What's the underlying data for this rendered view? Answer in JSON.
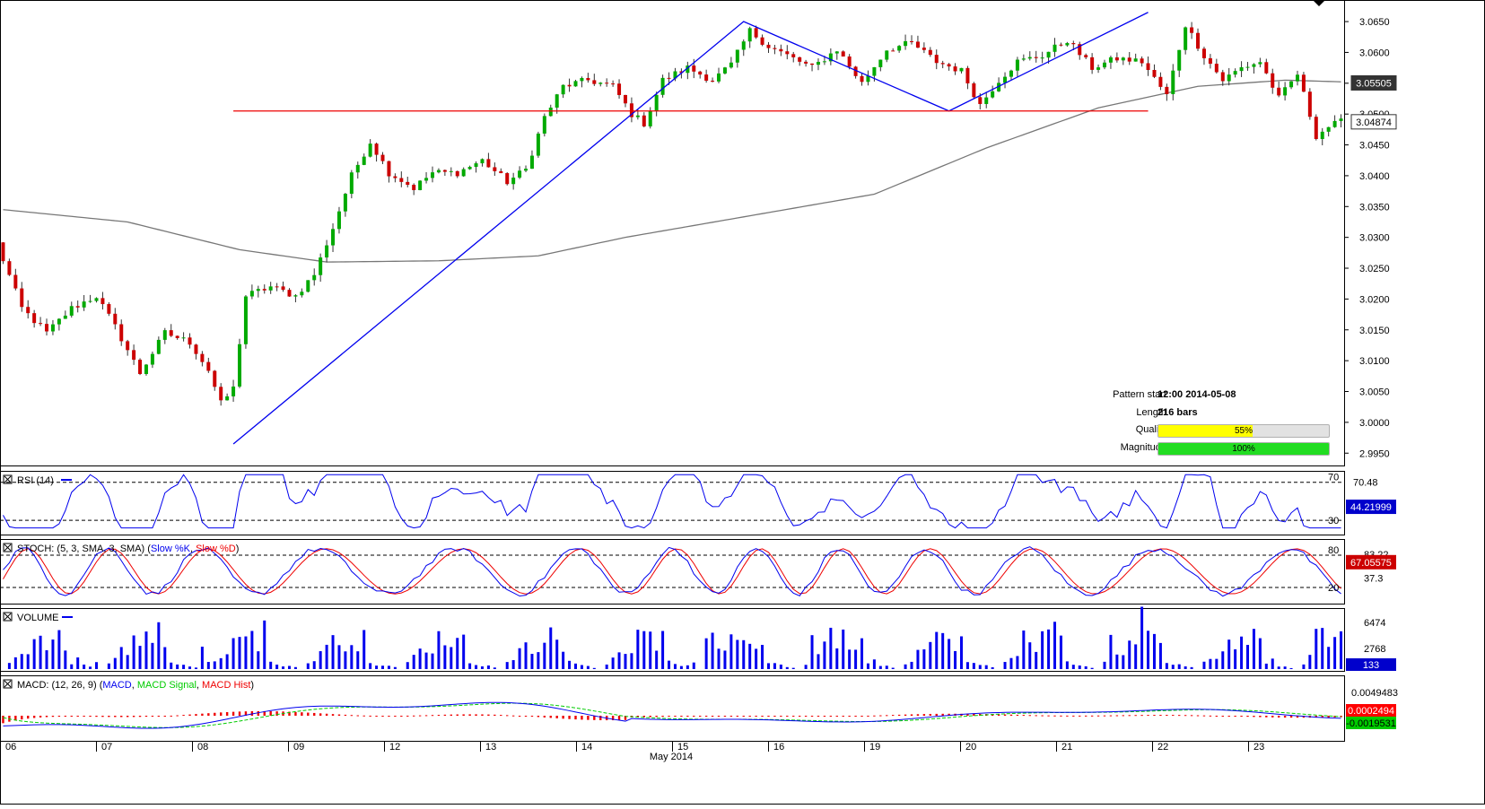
{
  "chart_data": {
    "type": "candlestick",
    "instrument_note": "",
    "x_axis": {
      "day_labels": [
        "06",
        "07",
        "08",
        "09",
        "12",
        "13",
        "14",
        "15",
        "16",
        "19",
        "20",
        "21",
        "22",
        "23"
      ],
      "month_label": "May 2014"
    },
    "price_panel": {
      "ylim": [
        2.993,
        3.0685
      ],
      "y_ticks": [
        "3.0650",
        "3.0600",
        "3.0550",
        "3.0500",
        "3.0450",
        "3.0400",
        "3.0350",
        "3.0300",
        "3.0250",
        "3.0200",
        "3.0150",
        "3.0100",
        "3.0050",
        "3.0000",
        "2.9950"
      ],
      "badges": [
        {
          "label": "3.05505",
          "value": 3.05505,
          "bg": "#333333",
          "fg": "#ffffff"
        },
        {
          "label": "3.04874",
          "value": 3.04874,
          "bg": "#ffffff",
          "fg": "#000000"
        }
      ],
      "candles_approx_count": 216,
      "anchor_path": [
        {
          "bar": 0,
          "price": 3.029
        },
        {
          "bar": 4,
          "price": 3.0185
        },
        {
          "bar": 8,
          "price": 3.0145
        },
        {
          "bar": 12,
          "price": 3.0185
        },
        {
          "bar": 16,
          "price": 3.0205
        },
        {
          "bar": 19,
          "price": 3.0155
        },
        {
          "bar": 23,
          "price": 3.008
        },
        {
          "bar": 27,
          "price": 3.0145
        },
        {
          "bar": 31,
          "price": 3.013
        },
        {
          "bar": 34,
          "price": 3.0085
        },
        {
          "bar": 36,
          "price": 3.003
        },
        {
          "bar": 38,
          "price": 3.0055
        },
        {
          "bar": 40,
          "price": 3.0205
        },
        {
          "bar": 44,
          "price": 3.022
        },
        {
          "bar": 48,
          "price": 3.0205
        },
        {
          "bar": 51,
          "price": 3.024
        },
        {
          "bar": 54,
          "price": 3.0315
        },
        {
          "bar": 57,
          "price": 3.04
        },
        {
          "bar": 60,
          "price": 3.0455
        },
        {
          "bar": 63,
          "price": 3.0405
        },
        {
          "bar": 67,
          "price": 3.038
        },
        {
          "bar": 70,
          "price": 3.0405
        },
        {
          "bar": 74,
          "price": 3.0405
        },
        {
          "bar": 78,
          "price": 3.0425
        },
        {
          "bar": 82,
          "price": 3.039
        },
        {
          "bar": 85,
          "price": 3.041
        },
        {
          "bar": 88,
          "price": 3.0495
        },
        {
          "bar": 91,
          "price": 3.0545
        },
        {
          "bar": 95,
          "price": 3.0555
        },
        {
          "bar": 99,
          "price": 3.0545
        },
        {
          "bar": 102,
          "price": 3.05
        },
        {
          "bar": 104,
          "price": 3.0485
        },
        {
          "bar": 107,
          "price": 3.0555
        },
        {
          "bar": 111,
          "price": 3.0575
        },
        {
          "bar": 115,
          "price": 3.0555
        },
        {
          "bar": 118,
          "price": 3.058
        },
        {
          "bar": 121,
          "price": 3.0635
        },
        {
          "bar": 124,
          "price": 3.061
        },
        {
          "bar": 127,
          "price": 3.0595
        },
        {
          "bar": 131,
          "price": 3.0575
        },
        {
          "bar": 135,
          "price": 3.0605
        },
        {
          "bar": 139,
          "price": 3.055
        },
        {
          "bar": 143,
          "price": 3.0605
        },
        {
          "bar": 147,
          "price": 3.0615
        },
        {
          "bar": 151,
          "price": 3.0585
        },
        {
          "bar": 155,
          "price": 3.057
        },
        {
          "bar": 158,
          "price": 3.0515
        },
        {
          "bar": 161,
          "price": 3.0555
        },
        {
          "bar": 164,
          "price": 3.0585
        },
        {
          "bar": 168,
          "price": 3.0595
        },
        {
          "bar": 172,
          "price": 3.062
        },
        {
          "bar": 176,
          "price": 3.0575
        },
        {
          "bar": 180,
          "price": 3.059
        },
        {
          "bar": 184,
          "price": 3.0585
        },
        {
          "bar": 188,
          "price": 3.053
        },
        {
          "bar": 191,
          "price": 3.0645
        },
        {
          "bar": 194,
          "price": 3.0595
        },
        {
          "bar": 197,
          "price": 3.0555
        },
        {
          "bar": 200,
          "price": 3.0575
        },
        {
          "bar": 203,
          "price": 3.0585
        },
        {
          "bar": 206,
          "price": 3.0525
        },
        {
          "bar": 209,
          "price": 3.0565
        },
        {
          "bar": 212,
          "price": 3.0465
        },
        {
          "bar": 214,
          "price": 3.048
        },
        {
          "bar": 216,
          "price": 3.0487
        }
      ],
      "moving_average": [
        {
          "bar": 0,
          "price": 3.0345
        },
        {
          "bar": 20,
          "price": 3.0325
        },
        {
          "bar": 38,
          "price": 3.028
        },
        {
          "bar": 52,
          "price": 3.026
        },
        {
          "bar": 70,
          "price": 3.0262
        },
        {
          "bar": 86,
          "price": 3.027
        },
        {
          "bar": 100,
          "price": 3.03
        },
        {
          "bar": 120,
          "price": 3.0335
        },
        {
          "bar": 140,
          "price": 3.037
        },
        {
          "bar": 158,
          "price": 3.0445
        },
        {
          "bar": 176,
          "price": 3.051
        },
        {
          "bar": 192,
          "price": 3.0545
        },
        {
          "bar": 206,
          "price": 3.0555
        },
        {
          "bar": 216,
          "price": 3.0552
        }
      ],
      "pattern_lines": [
        {
          "color": "#0000ee",
          "points": [
            {
              "bar": 37,
              "price": 2.9965
            },
            {
              "bar": 119,
              "price": 3.065
            },
            {
              "bar": 152,
              "price": 3.0505
            },
            {
              "bar": 184,
              "price": 3.0665
            }
          ]
        },
        {
          "color": "#ee0000",
          "points": [
            {
              "bar": 37,
              "price": 3.0505
            },
            {
              "bar": 184,
              "price": 3.0505
            }
          ]
        }
      ],
      "pattern_info": {
        "pattern_start_label": "Pattern start",
        "pattern_start_value": "12:00 2014-05-08",
        "length_label": "Length",
        "length_value": "216 bars",
        "quality_label": "Quality",
        "quality_value": "55%",
        "quality_fraction": 0.55,
        "quality_color": "#ffff00",
        "magnitude_label": "Magnitude",
        "magnitude_value": "100%",
        "magnitude_fraction": 1.0,
        "magnitude_color": "#22dd22"
      }
    },
    "rsi_panel": {
      "label": "RSI (14)",
      "ylim": [
        15,
        82
      ],
      "levels": [
        70,
        30
      ],
      "tick_labels": [
        "70",
        "70.48",
        "30"
      ],
      "badge": "44.21999",
      "line_color": "#0000ee"
    },
    "stoch_panel": {
      "label": "STOCH: (5, 3, SMA, 3, SMA)",
      "k_label": "Slow %K",
      "d_label": "Slow %D",
      "levels": [
        80,
        20
      ],
      "tick_labels": [
        "80",
        "83.22",
        "37.3",
        "20"
      ],
      "badge": "67.05575",
      "k_color": "#0000ee",
      "d_color": "#ee0000"
    },
    "volume_panel": {
      "label": "VOLUME",
      "tick_labels": [
        "6474",
        "2768"
      ],
      "badge": "133",
      "bar_color": "#0000ee"
    },
    "macd_panel": {
      "label": "MACD: (12, 26, 9)",
      "macd_label": "MACD",
      "signal_label": "MACD Signal",
      "hist_label": "MACD Hist",
      "tick_labels": [
        "0.0049483"
      ],
      "badges": [
        {
          "label": "0.0002494",
          "bg": "#ff0000",
          "fg": "#ffffff"
        },
        {
          "label": "-0.0019531",
          "bg": "#00cc00",
          "fg": "#000000"
        }
      ],
      "macd_color": "#0000ee",
      "signal_color": "#00cc00",
      "hist_color": "#ee0000"
    },
    "colors": {
      "up_candle": "#00aa00",
      "down_candle": "#cc0000",
      "wick": "#333333"
    }
  }
}
